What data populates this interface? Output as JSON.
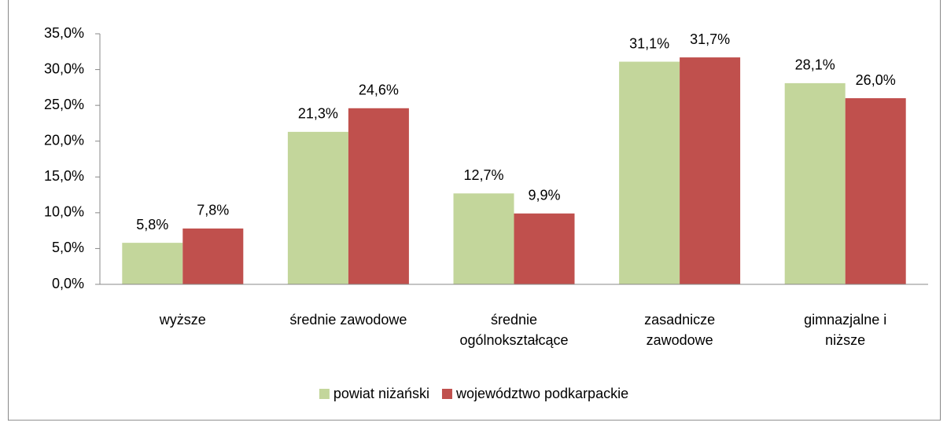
{
  "chart_data": {
    "type": "bar",
    "categories": [
      "wyższe",
      "średnie zawodowe",
      "średnie\nogólnokształcące",
      "zasadnicze\nzawodowe",
      "gimnazjalne i\nniższe"
    ],
    "series": [
      {
        "name": "powiat niżański",
        "color": "#c3d69b",
        "values": [
          5.8,
          21.3,
          12.7,
          31.1,
          28.1
        ],
        "value_labels": [
          "5,8%",
          "21,3%",
          "12,7%",
          "31,1%",
          "28,1%"
        ]
      },
      {
        "name": "województwo podkarpackie",
        "color": "#c0504d",
        "values": [
          7.8,
          24.6,
          9.9,
          31.7,
          26.0
        ],
        "value_labels": [
          "7,8%",
          "24,6%",
          "9,9%",
          "31,7%",
          "26,0%"
        ]
      }
    ],
    "ylim": [
      0,
      35
    ],
    "yticks": [
      {
        "value": 0,
        "label": "0,0%"
      },
      {
        "value": 5,
        "label": "5,0%"
      },
      {
        "value": 10,
        "label": "10,0%"
      },
      {
        "value": 15,
        "label": "15,0%"
      },
      {
        "value": 20,
        "label": "20,0%"
      },
      {
        "value": 25,
        "label": "25,0%"
      },
      {
        "value": 30,
        "label": "30,0%"
      },
      {
        "value": 35,
        "label": "35,0%"
      }
    ],
    "legend": "bottom"
  }
}
